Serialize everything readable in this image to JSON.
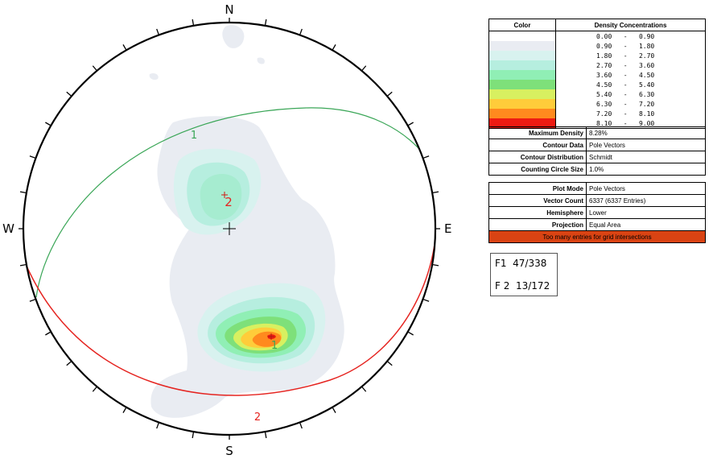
{
  "stereonet": {
    "compass": {
      "north": "N",
      "south": "S",
      "east": "E",
      "west": "W"
    },
    "planes": [
      {
        "label": "1",
        "color": "#3aa657"
      },
      {
        "label": "2",
        "color": "#e52420"
      }
    ],
    "centroid_labels": [
      "1",
      "2"
    ]
  },
  "legend": {
    "header_color": "Color",
    "header_density": "Density Concentrations",
    "rows": [
      {
        "min": "0.00",
        "max": "0.90",
        "color": "#ffffff"
      },
      {
        "min": "0.90",
        "max": "1.80",
        "color": "#e9ecf2"
      },
      {
        "min": "1.80",
        "max": "2.70",
        "color": "#d8f2ef"
      },
      {
        "min": "2.70",
        "max": "3.60",
        "color": "#b6eedf"
      },
      {
        "min": "3.60",
        "max": "4.50",
        "color": "#90efb5"
      },
      {
        "min": "4.50",
        "max": "5.40",
        "color": "#7ee07a"
      },
      {
        "min": "5.40",
        "max": "6.30",
        "color": "#d8f060"
      },
      {
        "min": "6.30",
        "max": "7.20",
        "color": "#ffcc3a"
      },
      {
        "min": "7.20",
        "max": "8.10",
        "color": "#ff8a1e"
      },
      {
        "min": "8.10",
        "max": "9.00",
        "color": "#ee1b12"
      }
    ]
  },
  "contour_info": [
    {
      "key": "Maximum Density",
      "value": "8.28%"
    },
    {
      "key": "Contour Data",
      "value": "Pole Vectors"
    },
    {
      "key": "Contour Distribution",
      "value": "Schmidt"
    },
    {
      "key": "Counting Circle Size",
      "value": "1.0%"
    }
  ],
  "plot_info": [
    {
      "key": "Plot Mode",
      "value": "Pole Vectors"
    },
    {
      "key": "Vector Count",
      "value": "6337 (6337 Entries)"
    },
    {
      "key": "Hemisphere",
      "value": "Lower"
    },
    {
      "key": "Projection",
      "value": "Equal Area"
    }
  ],
  "warning": "Too many entries for grid intersections",
  "plane_list": [
    "F1  47/338",
    "F 2  13/172"
  ]
}
